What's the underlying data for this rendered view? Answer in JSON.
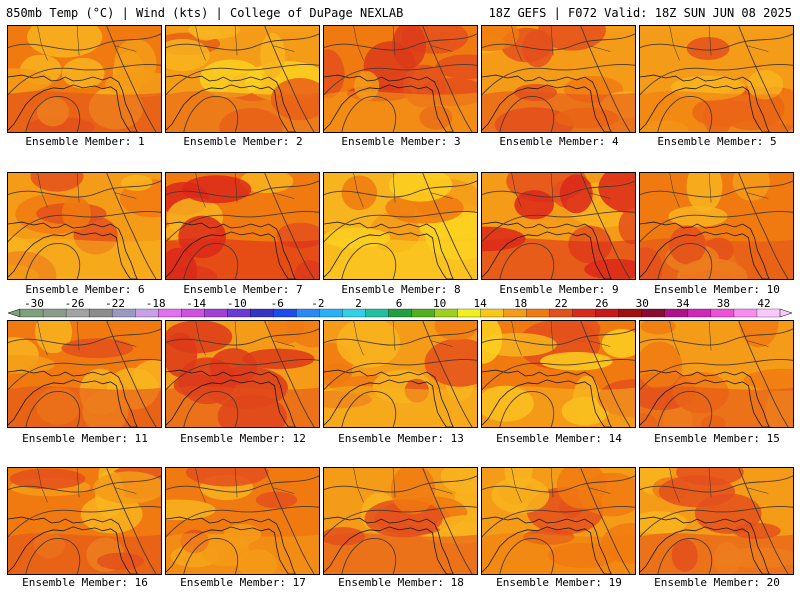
{
  "header": {
    "left": "850mb Temp (°C) | Wind (kts) | College of DuPage NEXLAB",
    "right": "18Z GEFS | F072 Valid: 18Z SUN JUN 08 2025"
  },
  "members": [
    {
      "label": "Ensemble Member: 1",
      "palette": [
        "#f07a10",
        "#f49b18",
        "#e4501c",
        "#f8b41e"
      ]
    },
    {
      "label": "Ensemble Member: 2",
      "palette": [
        "#f49b18",
        "#f8b41e",
        "#e86018",
        "#fcd020"
      ]
    },
    {
      "label": "Ensemble Member: 3",
      "palette": [
        "#f07a10",
        "#e4501c",
        "#f49b18",
        "#dc3a1a"
      ]
    },
    {
      "label": "Ensemble Member: 4",
      "palette": [
        "#f49b18",
        "#f07a10",
        "#e4501c",
        "#f8b41e"
      ]
    },
    {
      "label": "Ensemble Member: 5",
      "palette": [
        "#f49b18",
        "#f8b41e",
        "#f07a10",
        "#e4501c"
      ]
    },
    {
      "label": "Ensemble Member: 6",
      "palette": [
        "#f49b18",
        "#f07a10",
        "#f8b41e",
        "#e4501c"
      ]
    },
    {
      "label": "Ensemble Member: 7",
      "palette": [
        "#f07a10",
        "#e4501c",
        "#dc281a",
        "#f8b41e"
      ]
    },
    {
      "label": "Ensemble Member: 8",
      "palette": [
        "#f8b41e",
        "#f49b18",
        "#fcd020",
        "#f07a10"
      ]
    },
    {
      "label": "Ensemble Member: 9",
      "palette": [
        "#f49b18",
        "#e4501c",
        "#dc281a",
        "#f8b41e"
      ]
    },
    {
      "label": "Ensemble Member: 10",
      "palette": [
        "#f07a10",
        "#f49b18",
        "#e4501c",
        "#f8b41e"
      ]
    },
    {
      "label": "Ensemble Member: 11",
      "palette": [
        "#f07a10",
        "#f49b18",
        "#e4501c",
        "#f8b41e"
      ]
    },
    {
      "label": "Ensemble Member: 12",
      "palette": [
        "#f49b18",
        "#f07a10",
        "#e4501c",
        "#dc3a1a"
      ]
    },
    {
      "label": "Ensemble Member: 13",
      "palette": [
        "#f49b18",
        "#f07a10",
        "#f8b41e",
        "#e4501c"
      ]
    },
    {
      "label": "Ensemble Member: 14",
      "palette": [
        "#f07a10",
        "#e4501c",
        "#f8b41e",
        "#fcd020"
      ]
    },
    {
      "label": "Ensemble Member: 15",
      "palette": [
        "#f49b18",
        "#f07a10",
        "#e4501c",
        "#f8b41e"
      ]
    },
    {
      "label": "Ensemble Member: 16",
      "palette": [
        "#f07a10",
        "#f49b18",
        "#e4501c",
        "#f8b41e"
      ]
    },
    {
      "label": "Ensemble Member: 17",
      "palette": [
        "#f07a10",
        "#e4501c",
        "#f49b18",
        "#f8b41e"
      ]
    },
    {
      "label": "Ensemble Member: 18",
      "palette": [
        "#f49b18",
        "#f07a10",
        "#e4501c",
        "#f8b41e"
      ]
    },
    {
      "label": "Ensemble Member: 19",
      "palette": [
        "#f49b18",
        "#f8b41e",
        "#f07a10",
        "#e4501c"
      ]
    },
    {
      "label": "Ensemble Member: 20",
      "palette": [
        "#f49b18",
        "#f07a10",
        "#e4501c",
        "#f8b41e"
      ]
    }
  ],
  "colorbar": {
    "labels": [
      "-30",
      "-26",
      "-22",
      "-18",
      "-14",
      "-10",
      "-6",
      "-2",
      "2",
      "6",
      "10",
      "14",
      "18",
      "22",
      "26",
      "30",
      "34",
      "38",
      "42"
    ],
    "colors": [
      "#7fa07f",
      "#8c9c8c",
      "#a3a3a3",
      "#8c8c8c",
      "#9a9ac0",
      "#c8a0e8",
      "#e070f0",
      "#d050e0",
      "#a040d8",
      "#6a3ad8",
      "#3434c8",
      "#1a4cf0",
      "#2a88f8",
      "#28b0f8",
      "#30d0e8",
      "#20c0a0",
      "#20a040",
      "#50b020",
      "#a0d020",
      "#f0f020",
      "#f8c818",
      "#f49b18",
      "#f07a10",
      "#e4501c",
      "#dc281a",
      "#c81818",
      "#a01010",
      "#8a0a30",
      "#b0108a",
      "#d028b8",
      "#f050d8",
      "#f88cf0",
      "#fcc8fc"
    ]
  }
}
